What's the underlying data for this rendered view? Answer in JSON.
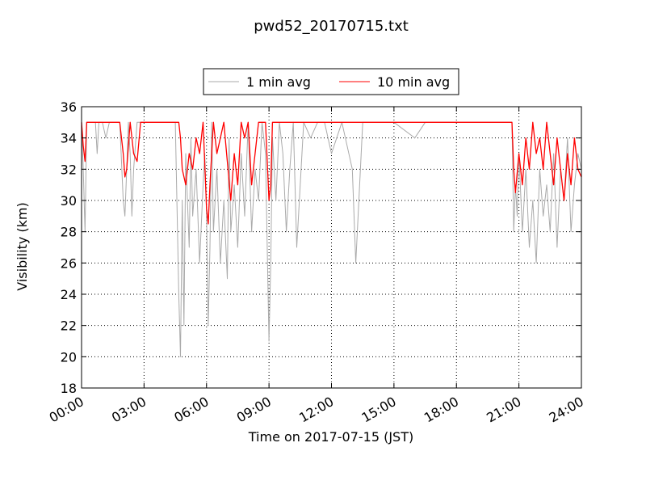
{
  "chart_data": {
    "type": "line",
    "title": "pwd52_20170715.txt",
    "xlabel": "Time on 2017-07-15 (JST)",
    "ylabel": "Visibility (km)",
    "xlim": [
      "00:00",
      "24:00"
    ],
    "ylim": [
      18,
      36
    ],
    "x_ticks": [
      "00:00",
      "03:00",
      "06:00",
      "09:00",
      "12:00",
      "15:00",
      "18:00",
      "21:00",
      "24:00"
    ],
    "y_ticks": [
      18,
      20,
      22,
      24,
      26,
      28,
      30,
      32,
      34,
      36
    ],
    "grid": true,
    "legend_position": "top-center",
    "series": [
      {
        "name": "1 min avg",
        "color": "#aaaaaa",
        "x": [
          "00:00",
          "00:05",
          "00:10",
          "00:15",
          "00:25",
          "00:40",
          "00:45",
          "00:50",
          "01:00",
          "01:10",
          "01:20",
          "01:30",
          "01:40",
          "01:50",
          "02:00",
          "02:05",
          "02:10",
          "02:15",
          "02:20",
          "02:25",
          "02:30",
          "02:40",
          "02:50",
          "03:00",
          "03:05",
          "03:30",
          "04:00",
          "04:30",
          "04:40",
          "04:45",
          "04:50",
          "04:55",
          "05:00",
          "05:05",
          "05:10",
          "05:15",
          "05:20",
          "05:30",
          "05:40",
          "05:50",
          "05:55",
          "06:00",
          "06:05",
          "06:10",
          "06:15",
          "06:20",
          "06:30",
          "06:40",
          "06:50",
          "07:00",
          "07:05",
          "07:10",
          "07:20",
          "07:30",
          "07:40",
          "07:50",
          "08:00",
          "08:10",
          "08:20",
          "08:30",
          "08:40",
          "08:50",
          "09:00",
          "09:05",
          "09:10",
          "09:20",
          "09:30",
          "09:40",
          "09:50",
          "10:00",
          "10:10",
          "10:20",
          "10:30",
          "10:40",
          "11:00",
          "11:20",
          "11:40",
          "12:00",
          "12:30",
          "13:00",
          "13:10",
          "13:30",
          "14:00",
          "15:00",
          "16:00",
          "16:30",
          "17:00",
          "17:30",
          "18:00",
          "19:00",
          "20:00",
          "20:40",
          "20:45",
          "20:50",
          "20:55",
          "21:00",
          "21:10",
          "21:20",
          "21:30",
          "21:40",
          "21:50",
          "22:00",
          "22:10",
          "22:20",
          "22:30",
          "22:40",
          "22:50",
          "23:00",
          "23:10",
          "23:20",
          "23:30",
          "23:40",
          "23:50",
          "24:00"
        ],
        "values": [
          35,
          32,
          28,
          35,
          35,
          35,
          33,
          35,
          35,
          34,
          35,
          35,
          35,
          35,
          30,
          29,
          32,
          35,
          33,
          29,
          32,
          35,
          35,
          35,
          35,
          35,
          35,
          35,
          24,
          20,
          30,
          22,
          33,
          30,
          27,
          34,
          29,
          32,
          26,
          31,
          33,
          29,
          22,
          27,
          35,
          28,
          32,
          26,
          30,
          25,
          34,
          28,
          31,
          27,
          33,
          29,
          35,
          28,
          32,
          30,
          35,
          33,
          21,
          26,
          34,
          30,
          35,
          33,
          28,
          32,
          35,
          27,
          31,
          35,
          34,
          35,
          35,
          33,
          35,
          32,
          26,
          35,
          35,
          35,
          34,
          35,
          35,
          35,
          35,
          35,
          35,
          35,
          28,
          31,
          29,
          33,
          28,
          32,
          27,
          30,
          26,
          32,
          29,
          31,
          28,
          33,
          27,
          32,
          30,
          34,
          28,
          31,
          33,
          32
        ]
      },
      {
        "name": "10 min avg",
        "color": "#ff0000",
        "x": [
          "00:00",
          "00:05",
          "00:10",
          "00:15",
          "01:50",
          "02:00",
          "02:05",
          "02:10",
          "02:20",
          "02:30",
          "02:40",
          "02:50",
          "03:00",
          "04:40",
          "04:45",
          "04:50",
          "05:00",
          "05:10",
          "05:20",
          "05:30",
          "05:40",
          "05:50",
          "06:00",
          "06:05",
          "06:10",
          "06:20",
          "06:30",
          "06:50",
          "07:00",
          "07:10",
          "07:20",
          "07:30",
          "07:40",
          "07:50",
          "08:00",
          "08:10",
          "08:20",
          "08:30",
          "08:50",
          "09:00",
          "09:05",
          "09:10",
          "09:20",
          "20:40",
          "20:45",
          "20:50",
          "21:00",
          "21:10",
          "21:20",
          "21:30",
          "21:40",
          "21:50",
          "22:00",
          "22:10",
          "22:20",
          "22:30",
          "22:40",
          "22:50",
          "23:00",
          "23:10",
          "23:20",
          "23:30",
          "23:40",
          "23:50",
          "24:00"
        ],
        "values": [
          35,
          33.5,
          32.5,
          35,
          35,
          33,
          31.5,
          32,
          35,
          33,
          32.5,
          35,
          35,
          35,
          34,
          32,
          31,
          33,
          32,
          34,
          33,
          35,
          29.5,
          28.5,
          31,
          35,
          33,
          35,
          32.5,
          30,
          33,
          31,
          35,
          34,
          35,
          31,
          33,
          35,
          35,
          30,
          31,
          35,
          35,
          35,
          32,
          30.5,
          33,
          31,
          34,
          32,
          35,
          33,
          34,
          32,
          35,
          33,
          31,
          34,
          32,
          30,
          33,
          31,
          34,
          32,
          31.5
        ]
      }
    ]
  }
}
